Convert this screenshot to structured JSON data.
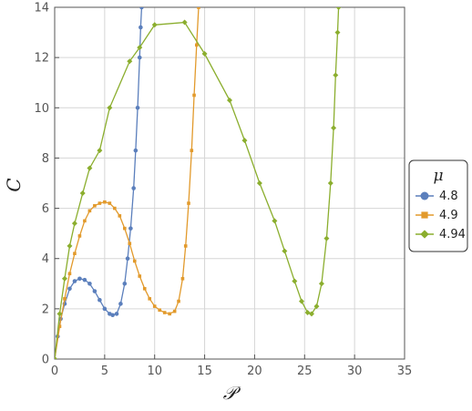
{
  "chart_data": {
    "type": "line",
    "xlabel": "𝒫",
    "ylabel": "C",
    "xlim": [
      0,
      35
    ],
    "ylim": [
      0,
      14
    ],
    "xticks": [
      0,
      5,
      10,
      15,
      20,
      25,
      30,
      35
    ],
    "yticks": [
      0,
      2,
      4,
      6,
      8,
      10,
      12,
      14
    ],
    "grid": true,
    "legend": {
      "title": "μ",
      "placement": "right"
    },
    "series": [
      {
        "name": "4.8",
        "color": "#5b7fbc",
        "marker": "circle",
        "points": [
          [
            0.0,
            0.0
          ],
          [
            0.3,
            0.9
          ],
          [
            0.6,
            1.6
          ],
          [
            1.0,
            2.2
          ],
          [
            1.5,
            2.8
          ],
          [
            2.0,
            3.1
          ],
          [
            2.5,
            3.2
          ],
          [
            3.0,
            3.15
          ],
          [
            3.5,
            3.0
          ],
          [
            4.0,
            2.7
          ],
          [
            4.5,
            2.35
          ],
          [
            5.0,
            2.0
          ],
          [
            5.5,
            1.8
          ],
          [
            5.8,
            1.75
          ],
          [
            6.2,
            1.8
          ],
          [
            6.6,
            2.2
          ],
          [
            7.0,
            3.0
          ],
          [
            7.3,
            4.0
          ],
          [
            7.6,
            5.2
          ],
          [
            7.9,
            6.8
          ],
          [
            8.1,
            8.3
          ],
          [
            8.3,
            10.0
          ],
          [
            8.5,
            12.0
          ],
          [
            8.6,
            13.2
          ],
          [
            8.7,
            14.0
          ]
        ]
      },
      {
        "name": "4.9",
        "color": "#e29a2c",
        "marker": "square",
        "points": [
          [
            0.0,
            0.0
          ],
          [
            0.5,
            1.3
          ],
          [
            1.0,
            2.4
          ],
          [
            1.5,
            3.4
          ],
          [
            2.0,
            4.2
          ],
          [
            2.5,
            4.9
          ],
          [
            3.0,
            5.5
          ],
          [
            3.5,
            5.9
          ],
          [
            4.0,
            6.1
          ],
          [
            4.5,
            6.2
          ],
          [
            5.0,
            6.25
          ],
          [
            5.5,
            6.2
          ],
          [
            6.0,
            6.0
          ],
          [
            6.5,
            5.7
          ],
          [
            7.0,
            5.2
          ],
          [
            7.5,
            4.6
          ],
          [
            8.0,
            3.9
          ],
          [
            8.5,
            3.3
          ],
          [
            9.0,
            2.8
          ],
          [
            9.5,
            2.4
          ],
          [
            10.0,
            2.1
          ],
          [
            10.5,
            1.95
          ],
          [
            11.0,
            1.85
          ],
          [
            11.5,
            1.8
          ],
          [
            12.0,
            1.9
          ],
          [
            12.4,
            2.3
          ],
          [
            12.8,
            3.2
          ],
          [
            13.1,
            4.5
          ],
          [
            13.4,
            6.2
          ],
          [
            13.7,
            8.3
          ],
          [
            13.95,
            10.5
          ],
          [
            14.2,
            12.5
          ],
          [
            14.4,
            14.0
          ]
        ]
      },
      {
        "name": "4.94",
        "color": "#8bae2e",
        "marker": "diamond",
        "points": [
          [
            0.0,
            0.0
          ],
          [
            0.5,
            1.8
          ],
          [
            1.0,
            3.2
          ],
          [
            1.5,
            4.5
          ],
          [
            2.0,
            5.4
          ],
          [
            2.8,
            6.6
          ],
          [
            3.5,
            7.6
          ],
          [
            4.5,
            8.3
          ],
          [
            5.5,
            10.0
          ],
          [
            7.5,
            11.85
          ],
          [
            8.5,
            12.4
          ],
          [
            10.0,
            13.3
          ],
          [
            13.0,
            13.4
          ],
          [
            15.0,
            12.15
          ],
          [
            17.5,
            10.3
          ],
          [
            19.0,
            8.7
          ],
          [
            20.5,
            7.0
          ],
          [
            22.0,
            5.5
          ],
          [
            23.0,
            4.3
          ],
          [
            24.0,
            3.1
          ],
          [
            24.7,
            2.3
          ],
          [
            25.3,
            1.85
          ],
          [
            25.7,
            1.8
          ],
          [
            26.2,
            2.1
          ],
          [
            26.7,
            3.0
          ],
          [
            27.2,
            4.8
          ],
          [
            27.6,
            7.0
          ],
          [
            27.9,
            9.2
          ],
          [
            28.1,
            11.3
          ],
          [
            28.3,
            13.0
          ],
          [
            28.4,
            14.0
          ]
        ]
      }
    ]
  }
}
